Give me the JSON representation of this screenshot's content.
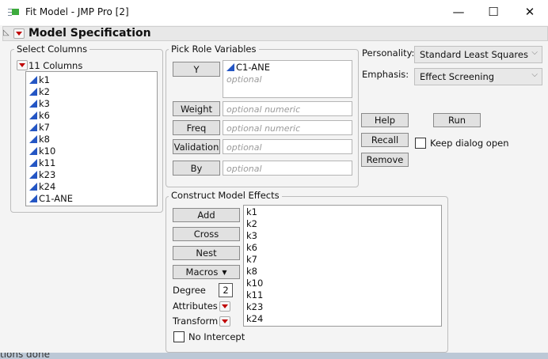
{
  "window": {
    "title": "Fit Model - JMP Pro [2]",
    "icon": "jmp-app-icon",
    "controls": [
      "minimize",
      "maximize",
      "close"
    ]
  },
  "header": {
    "title": "Model Specification"
  },
  "select_columns": {
    "label": "Select Columns",
    "count_label": "11 Columns",
    "columns": [
      "k1",
      "k2",
      "k3",
      "k6",
      "k7",
      "k8",
      "k10",
      "k11",
      "k23",
      "k24",
      "C1-ANE"
    ]
  },
  "roles": {
    "label": "Pick Role Variables",
    "y": {
      "button": "Y",
      "value": "C1-ANE",
      "placeholder": "optional"
    },
    "weight": {
      "button": "Weight",
      "placeholder": "optional numeric"
    },
    "freq": {
      "button": "Freq",
      "placeholder": "optional numeric"
    },
    "validation": {
      "button": "Validation",
      "placeholder": "optional"
    },
    "by": {
      "button": "By",
      "placeholder": "optional"
    }
  },
  "options": {
    "personality_label": "Personality:",
    "personality": "Standard Least Squares",
    "emphasis_label": "Emphasis:",
    "emphasis": "Effect Screening"
  },
  "actions": {
    "help": "Help",
    "run": "Run",
    "recall": "Recall",
    "remove": "Remove",
    "keep_open": "Keep dialog open",
    "keep_open_checked": false
  },
  "construct": {
    "label": "Construct Model Effects",
    "add": "Add",
    "cross": "Cross",
    "nest": "Nest",
    "macros": "Macros",
    "degree_label": "Degree",
    "degree": "2",
    "attributes": "Attributes",
    "transform": "Transform",
    "no_intercept": "No Intercept",
    "no_intercept_checked": false,
    "effects": [
      "k1",
      "k2",
      "k3",
      "k6",
      "k7",
      "k8",
      "k10",
      "k11",
      "k23",
      "k24"
    ]
  },
  "status": "tions done",
  "colors": {
    "menu_triangle": "#c00000",
    "continuous_icon": "#2456c4"
  }
}
